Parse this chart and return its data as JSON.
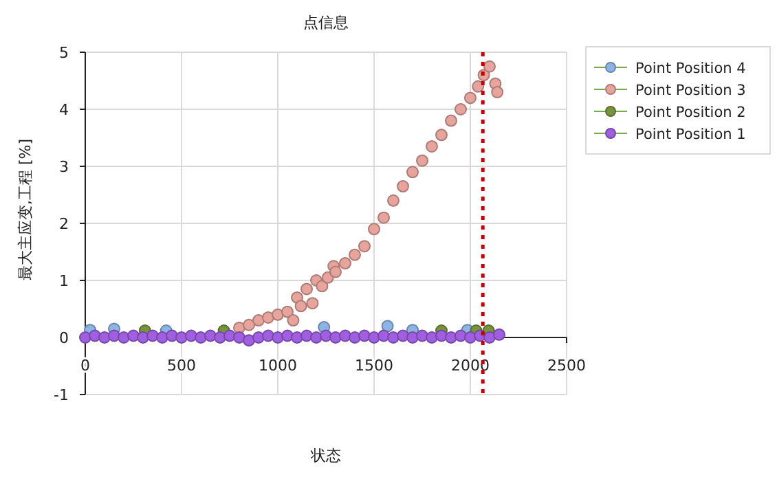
{
  "chart_data": {
    "type": "scatter",
    "title": "点信息",
    "xlabel": "状态",
    "ylabel": "最大主应变,工程 [%]",
    "xlim": [
      0,
      2500
    ],
    "xticks": [
      0,
      500,
      1000,
      1500,
      2000,
      2500
    ],
    "ylim": [
      -1,
      5
    ],
    "yticks": [
      -1,
      0,
      1,
      2,
      3,
      4,
      5
    ],
    "grid": true,
    "legend": "top right",
    "marker": "circle",
    "ref_lines": [
      {
        "axis": "x",
        "value": 2065,
        "color": "#c00000",
        "line_style": "dotted"
      }
    ],
    "series": [
      {
        "name": "Point Position 4",
        "color": "#8db4e2",
        "x": [
          25,
          150,
          420,
          1240,
          1570,
          1700,
          1985
        ],
        "values": [
          0.13,
          0.15,
          0.12,
          0.18,
          0.2,
          0.13,
          0.13
        ]
      },
      {
        "name": "Point Position 3",
        "color": "#e6a49c",
        "x": [
          800,
          850,
          900,
          950,
          1000,
          1050,
          1080,
          1100,
          1120,
          1150,
          1180,
          1200,
          1230,
          1260,
          1290,
          1300,
          1350,
          1400,
          1450,
          1500,
          1550,
          1600,
          1650,
          1700,
          1750,
          1800,
          1850,
          1900,
          1950,
          2000,
          2040,
          2070,
          2100,
          2130,
          2140
        ],
        "values": [
          0.17,
          0.22,
          0.3,
          0.35,
          0.4,
          0.45,
          0.3,
          0.7,
          0.55,
          0.85,
          0.6,
          1.0,
          0.9,
          1.05,
          1.25,
          1.15,
          1.3,
          1.45,
          1.6,
          1.9,
          2.1,
          2.4,
          2.65,
          2.9,
          3.1,
          3.35,
          3.55,
          3.8,
          4.0,
          4.2,
          4.4,
          4.6,
          4.75,
          4.45,
          4.3
        ]
      },
      {
        "name": "Point Position 2",
        "color": "#77933c",
        "x": [
          310,
          720,
          1850,
          2030,
          2095
        ],
        "values": [
          0.12,
          0.12,
          0.12,
          0.12,
          0.12
        ]
      },
      {
        "name": "Point Position 1",
        "color": "#9f5fe0",
        "x": [
          0,
          50,
          100,
          150,
          200,
          250,
          300,
          350,
          400,
          450,
          500,
          550,
          600,
          650,
          700,
          750,
          800,
          850,
          900,
          950,
          1000,
          1050,
          1100,
          1150,
          1200,
          1250,
          1300,
          1350,
          1400,
          1450,
          1500,
          1550,
          1600,
          1650,
          1700,
          1750,
          1800,
          1850,
          1900,
          1950,
          2000,
          2050,
          2100,
          2150
        ],
        "values": [
          0.0,
          0.03,
          0.0,
          0.03,
          0.0,
          0.03,
          0.0,
          0.03,
          0.0,
          0.03,
          0.0,
          0.03,
          0.0,
          0.03,
          0.0,
          0.03,
          0.0,
          -0.05,
          0.0,
          0.03,
          0.0,
          0.03,
          0.0,
          0.03,
          0.0,
          0.03,
          0.0,
          0.03,
          0.0,
          0.03,
          0.0,
          0.03,
          0.0,
          0.03,
          0.0,
          0.03,
          0.0,
          0.03,
          0.0,
          0.03,
          0.0,
          0.03,
          0.0,
          0.05
        ]
      }
    ]
  }
}
